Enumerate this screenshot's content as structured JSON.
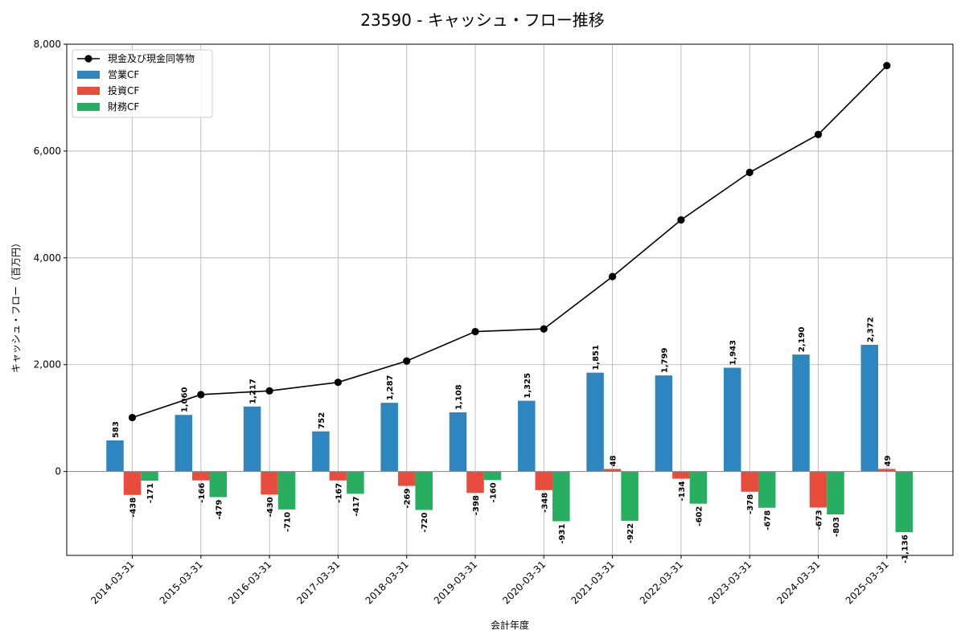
{
  "chart_data": {
    "type": "bar",
    "title": "23590 - キャッシュ・フロー推移",
    "xlabel": "会計年度",
    "ylabel": "キャッシュ・フロー（百万円）",
    "categories": [
      "2014-03-31",
      "2015-03-31",
      "2016-03-31",
      "2017-03-31",
      "2018-03-31",
      "2019-03-31",
      "2020-03-31",
      "2021-03-31",
      "2022-03-31",
      "2023-03-31",
      "2024-03-31",
      "2025-03-31"
    ],
    "ylim": [
      -1570,
      8000
    ],
    "yticks": [
      0,
      2000,
      4000,
      6000,
      8000
    ],
    "ytick_labels": [
      "0",
      "2,000",
      "4,000",
      "6,000",
      "8,000"
    ],
    "grid": true,
    "legend_position": "top-left",
    "series": [
      {
        "name": "営業CF",
        "kind": "bar",
        "color": "#2e86c1",
        "values": [
          583,
          1060,
          1217,
          752,
          1287,
          1108,
          1325,
          1851,
          1799,
          1943,
          2190,
          2372
        ],
        "labels": [
          "583",
          "1,060",
          "1,217",
          "752",
          "1,287",
          "1,108",
          "1,325",
          "1,851",
          "1,799",
          "1,943",
          "2,190",
          "2,372"
        ]
      },
      {
        "name": "投資CF",
        "kind": "bar",
        "color": "#e74c3c",
        "values": [
          -438,
          -166,
          -430,
          -167,
          -269,
          -398,
          -348,
          48,
          -134,
          -378,
          -673,
          49
        ],
        "labels": [
          "-438",
          "-166",
          "-430",
          "-167",
          "-269",
          "-398",
          "-348",
          "48",
          "-134",
          "-378",
          "-673",
          "49"
        ]
      },
      {
        "name": "財務CF",
        "kind": "bar",
        "color": "#27ae60",
        "values": [
          -171,
          -479,
          -710,
          -417,
          -720,
          -160,
          -931,
          -922,
          -602,
          -678,
          -803,
          -1136
        ],
        "labels": [
          "-171",
          "-479",
          "-710",
          "-417",
          "-720",
          "-160",
          "-931",
          "-922",
          "-602",
          "-678",
          "-803",
          "-1,136"
        ]
      },
      {
        "name": "現金及び現金同等物",
        "kind": "line",
        "color": "#000000",
        "values": [
          1010,
          1440,
          1510,
          1670,
          2070,
          2620,
          2670,
          3650,
          4710,
          5600,
          6310,
          7600
        ]
      }
    ]
  }
}
